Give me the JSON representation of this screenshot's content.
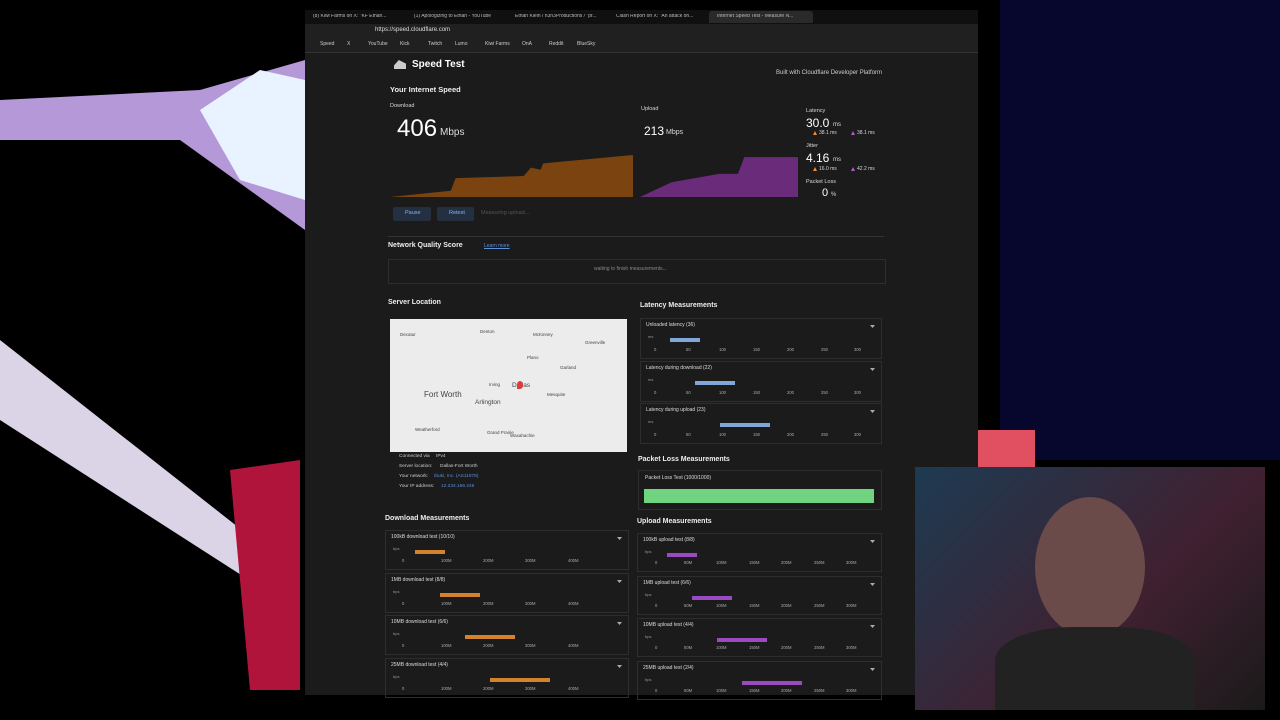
{
  "browser": {
    "tabs": [
      "(8) Kiwi Farms on X: \"KF Ethan...",
      "(1) Apologizing to Ethan - YouTube",
      "Ethan Klein / h3h3Productions / \"pr...",
      "Clash Report on X: \"An attack on...",
      "Internet Speed Test - Measure N..."
    ],
    "url": "https://speed.cloudflare.com",
    "bookmarks": [
      "Speed",
      "X",
      "YouTube",
      "Kick",
      "Twitch",
      "Lumo",
      "Kiwi Farms",
      "OnA",
      "Reddit",
      "BlueSky"
    ]
  },
  "header": {
    "title": "Speed Test",
    "built_with": "Built with Cloudflare Developer Platform"
  },
  "speed": {
    "title": "Your Internet Speed",
    "download": {
      "label": "Download",
      "value": "406",
      "unit": "Mbps"
    },
    "upload": {
      "label": "Upload",
      "value": "213",
      "unit": "Mbps"
    },
    "latency": {
      "label": "Latency",
      "value": "30.0",
      "unit": "ms",
      "loaded_down": "38.1 ms",
      "loaded_up": "38.1 ms"
    },
    "jitter": {
      "label": "Jitter",
      "value": "4.16",
      "unit": "ms",
      "loaded_down": "16.0 ms",
      "loaded_up": "42.2 ms"
    },
    "packet_loss": {
      "label": "Packet Loss",
      "value": "0",
      "unit": "%"
    },
    "buttons": [
      "Pause",
      "Retest"
    ],
    "status": "Measuring upload..."
  },
  "network_quality": {
    "title": "Network Quality Score",
    "link": "Learn more",
    "status": "waiting to finish measurements..."
  },
  "server_location": {
    "title": "Server Location",
    "map_labels": [
      "Denton",
      "McKinney",
      "Plano",
      "Garland",
      "Irving",
      "Dallas",
      "Fort Worth",
      "Arlington",
      "Mesquite",
      "Grand Prairie",
      "Decatur",
      "Weatherford",
      "Waxahachie",
      "Greenville"
    ],
    "info": [
      [
        "Connected via",
        "IPv4"
      ],
      [
        "Server location:",
        "Dallas-Fort Worth"
      ],
      [
        "Your network:",
        "Ibuki, Inc. (AS11878)"
      ],
      [
        "Your IP address:",
        "12.234.166.245"
      ]
    ]
  },
  "latency_measurements": {
    "title": "Latency Measurements",
    "unit": "ms",
    "ticks": [
      "0",
      "50",
      "100",
      "150",
      "200",
      "250",
      "300"
    ],
    "cards": [
      "Unloaded latency (36)",
      "Latency during download (22)",
      "Latency during upload (23)"
    ]
  },
  "packet_loss_measurements": {
    "title": "Packet Loss Measurements",
    "card": "Packet Loss Test (1000/1000)"
  },
  "download_measurements": {
    "title": "Download Measurements",
    "unit": "bps",
    "ticks": [
      "0",
      "100M",
      "200M",
      "300M",
      "400M"
    ],
    "cards": [
      "100kB download test (10/10)",
      "1MB download test (8/8)",
      "10MB download test (6/6)",
      "25MB download test (4/4)"
    ]
  },
  "upload_measurements": {
    "title": "Upload Measurements",
    "unit": "bps",
    "ticks": [
      "0",
      "50M",
      "100M",
      "150M",
      "200M",
      "250M",
      "300M"
    ],
    "cards": [
      "100kB upload test (8/8)",
      "1MB upload test (6/6)",
      "10MB upload test (4/4)",
      "25MB upload test (2/4)"
    ]
  }
}
